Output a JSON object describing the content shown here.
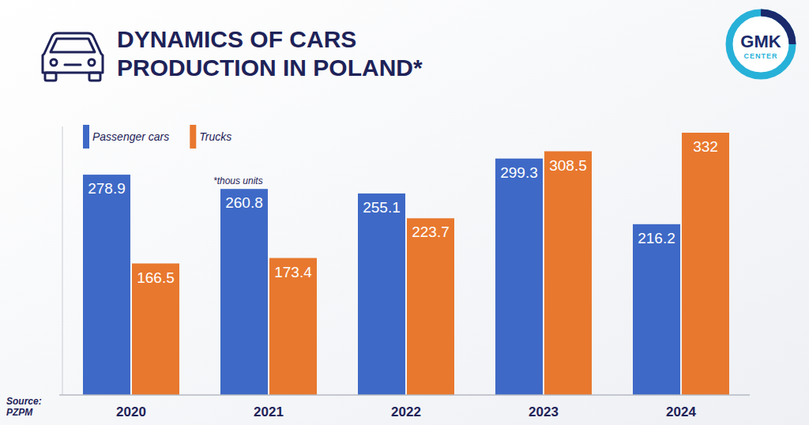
{
  "chart_data": {
    "type": "bar",
    "title": "DYNAMICS OF CARS PRODUCTION IN POLAND*",
    "note": "*thous units",
    "source": "Source: PZPM",
    "logo": "GMK CENTER",
    "categories": [
      "2020",
      "2021",
      "2022",
      "2023",
      "2024"
    ],
    "series": [
      {
        "name": "Passenger cars",
        "color": "#3e69c6",
        "values": [
          278.9,
          260.8,
          255.1,
          299.3,
          216.2
        ]
      },
      {
        "name": "Trucks",
        "color": "#e8782e",
        "values": [
          166.5,
          173.4,
          223.7,
          308.5,
          332
        ]
      }
    ],
    "ylim": [
      0,
      340
    ],
    "grid": false,
    "legend": "top-left",
    "data_labels": true,
    "tick_labels": "x"
  }
}
